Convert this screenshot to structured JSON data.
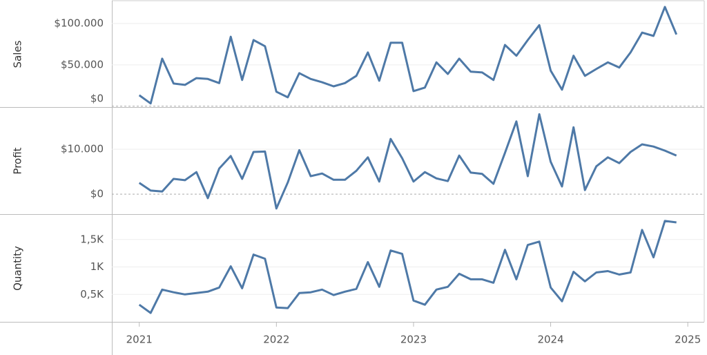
{
  "chart_data": {
    "type": "line",
    "color": "#4e79a7",
    "x": [
      2021,
      2021.083,
      2021.167,
      2021.25,
      2021.333,
      2021.417,
      2021.5,
      2021.583,
      2021.667,
      2021.75,
      2021.833,
      2021.917,
      2022,
      2022.083,
      2022.167,
      2022.25,
      2022.333,
      2022.417,
      2022.5,
      2022.583,
      2022.667,
      2022.75,
      2022.833,
      2022.917,
      2023,
      2023.083,
      2023.167,
      2023.25,
      2023.333,
      2023.417,
      2023.5,
      2023.583,
      2023.667,
      2023.75,
      2023.833,
      2023.917,
      2024,
      2024.083,
      2024.167,
      2024.25,
      2024.333,
      2024.417,
      2024.5,
      2024.583,
      2024.667,
      2024.75,
      2024.833,
      2024.917
    ],
    "xlim": [
      2020.8,
      2025.12
    ],
    "xticks": [
      2021,
      2022,
      2023,
      2024,
      2025
    ],
    "series": [
      {
        "name": "Sales",
        "ylim": [
          -1000,
          126700
        ],
        "yticks": [
          {
            "value": 0,
            "label": "$0"
          },
          {
            "value": 50000,
            "label": "$50.000"
          },
          {
            "value": 100000,
            "label": "$100.000"
          }
        ],
        "values": [
          13300,
          3300,
          57500,
          27500,
          25800,
          34000,
          33000,
          28000,
          84000,
          31700,
          80000,
          72500,
          17500,
          10800,
          40000,
          33000,
          29000,
          24000,
          28000,
          36700,
          65000,
          30800,
          76700,
          76700,
          18300,
          22500,
          53000,
          39000,
          57500,
          41700,
          40800,
          31700,
          74000,
          61000,
          80000,
          98000,
          43000,
          20000,
          61000,
          36700,
          45000,
          53000,
          46700,
          65000,
          89000,
          85000,
          120000,
          86700
        ]
      },
      {
        "name": "Profit",
        "ylim": [
          -4300,
          19100
        ],
        "yticks": [
          {
            "value": 0,
            "label": "$0"
          },
          {
            "value": 10000,
            "label": "$10.000"
          }
        ],
        "values": [
          2500,
          800,
          600,
          3400,
          3100,
          4900,
          -900,
          5700,
          8500,
          3400,
          9400,
          9500,
          -3200,
          2600,
          9800,
          4000,
          4600,
          3200,
          3200,
          5200,
          8200,
          2800,
          12300,
          8000,
          2800,
          4900,
          3500,
          2900,
          8600,
          4800,
          4500,
          2300,
          9200,
          16200,
          4000,
          17800,
          7200,
          1700,
          14900,
          900,
          6200,
          8200,
          6900,
          9400,
          11100,
          10600,
          9700,
          8600
        ]
      },
      {
        "name": "Quantity",
        "ylim": [
          0,
          1950
        ],
        "yticks": [
          {
            "value": 500,
            "label": "0,5K"
          },
          {
            "value": 1000,
            "label": "1K"
          },
          {
            "value": 1500,
            "label": "1,5K"
          }
        ],
        "values": [
          312,
          162,
          588,
          538,
          500,
          525,
          550,
          625,
          1012,
          612,
          1225,
          1150,
          262,
          250,
          525,
          538,
          588,
          488,
          550,
          600,
          1088,
          638,
          1300,
          1238,
          388,
          312,
          588,
          638,
          875,
          775,
          775,
          712,
          1312,
          775,
          1400,
          1462,
          625,
          375,
          912,
          738,
          900,
          925,
          862,
          900,
          1675,
          1175,
          1838,
          1812
        ]
      }
    ]
  }
}
